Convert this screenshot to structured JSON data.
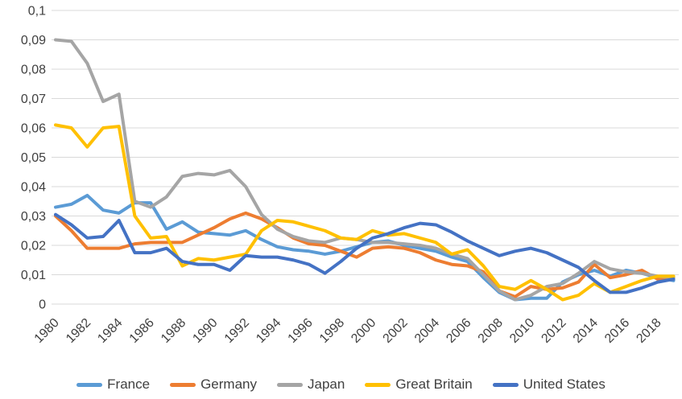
{
  "chart_data": {
    "type": "line",
    "title": "",
    "xlabel": "",
    "ylabel": "",
    "grid": true,
    "legend_position": "bottom",
    "ylim": [
      0,
      0.1
    ],
    "x": [
      1980,
      1981,
      1982,
      1983,
      1984,
      1985,
      1986,
      1987,
      1988,
      1989,
      1990,
      1991,
      1992,
      1993,
      1994,
      1995,
      1996,
      1997,
      1998,
      1999,
      2000,
      2001,
      2002,
      2003,
      2004,
      2005,
      2006,
      2007,
      2008,
      2009,
      2010,
      2011,
      2012,
      2013,
      2014,
      2015,
      2016,
      2017,
      2018,
      2019
    ],
    "x_tick_labels": [
      "1980",
      "1982",
      "1984",
      "1986",
      "1988",
      "1990",
      "1992",
      "1994",
      "1996",
      "1998",
      "2000",
      "2002",
      "2004",
      "2006",
      "2008",
      "2010",
      "2012",
      "2014",
      "2016",
      "2018"
    ],
    "y_ticks": [
      {
        "value": 0,
        "label": "0"
      },
      {
        "value": 0.01,
        "label": "0,01"
      },
      {
        "value": 0.02,
        "label": "0,02"
      },
      {
        "value": 0.03,
        "label": "0,03"
      },
      {
        "value": 0.04,
        "label": "0,04"
      },
      {
        "value": 0.05,
        "label": "0,05"
      },
      {
        "value": 0.06,
        "label": "0,06"
      },
      {
        "value": 0.07,
        "label": "0,07"
      },
      {
        "value": 0.08,
        "label": "0,08"
      },
      {
        "value": 0.09,
        "label": "0,09"
      },
      {
        "value": 0.1,
        "label": "0,1"
      }
    ],
    "series": [
      {
        "name": "France",
        "color": "#5B9BD5",
        "values": [
          0.033,
          0.034,
          0.037,
          0.032,
          0.031,
          0.0345,
          0.0345,
          0.0255,
          0.028,
          0.0245,
          0.024,
          0.0235,
          0.025,
          0.022,
          0.0195,
          0.0185,
          0.018,
          0.017,
          0.018,
          0.0195,
          0.021,
          0.0215,
          0.02,
          0.019,
          0.018,
          0.016,
          0.0145,
          0.009,
          0.004,
          0.0015,
          0.002,
          0.002,
          0.0075,
          0.01,
          0.0115,
          0.0095,
          0.0115,
          0.0105,
          0.009,
          0.008
        ]
      },
      {
        "name": "Germany",
        "color": "#ED7D31",
        "values": [
          0.03,
          0.025,
          0.019,
          0.019,
          0.019,
          0.0205,
          0.021,
          0.021,
          0.021,
          0.0235,
          0.026,
          0.029,
          0.031,
          0.029,
          0.026,
          0.0225,
          0.0205,
          0.02,
          0.018,
          0.016,
          0.019,
          0.0195,
          0.019,
          0.0175,
          0.015,
          0.0135,
          0.013,
          0.011,
          0.0045,
          0.0025,
          0.006,
          0.005,
          0.0055,
          0.0075,
          0.0135,
          0.009,
          0.01,
          0.0115,
          0.0085,
          0.009
        ]
      },
      {
        "name": "Japan",
        "color": "#A5A5A5",
        "values": [
          0.09,
          0.0895,
          0.082,
          0.069,
          0.0715,
          0.035,
          0.033,
          0.0365,
          0.0435,
          0.0445,
          0.044,
          0.0455,
          0.04,
          0.0305,
          0.0255,
          0.023,
          0.0215,
          0.021,
          0.0225,
          0.022,
          0.021,
          0.021,
          0.0205,
          0.02,
          0.019,
          0.017,
          0.0155,
          0.01,
          0.0045,
          0.0015,
          0.003,
          0.006,
          0.007,
          0.0105,
          0.0145,
          0.012,
          0.011,
          0.0105,
          0.0095,
          0.009
        ]
      },
      {
        "name": "Great Britain",
        "color": "#FFC000",
        "values": [
          0.061,
          0.06,
          0.0535,
          0.06,
          0.0605,
          0.03,
          0.0225,
          0.023,
          0.013,
          0.0155,
          0.015,
          0.016,
          0.017,
          0.025,
          0.0285,
          0.028,
          0.0265,
          0.025,
          0.0225,
          0.022,
          0.025,
          0.0235,
          0.024,
          0.0225,
          0.021,
          0.017,
          0.0185,
          0.013,
          0.006,
          0.005,
          0.008,
          0.005,
          0.0015,
          0.003,
          0.007,
          0.004,
          0.006,
          0.008,
          0.0095,
          0.0095
        ]
      },
      {
        "name": "United States",
        "color": "#4472C4",
        "values": [
          0.0305,
          0.027,
          0.0225,
          0.023,
          0.0285,
          0.0175,
          0.0175,
          0.019,
          0.0145,
          0.0135,
          0.0135,
          0.0115,
          0.0165,
          0.016,
          0.016,
          0.015,
          0.0135,
          0.0105,
          0.0145,
          0.019,
          0.0225,
          0.024,
          0.026,
          0.0275,
          0.027,
          0.0245,
          0.0215,
          0.019,
          0.0165,
          0.018,
          0.019,
          0.0175,
          0.015,
          0.0125,
          0.008,
          0.004,
          0.004,
          0.0055,
          0.0075,
          0.0085
        ]
      }
    ]
  }
}
